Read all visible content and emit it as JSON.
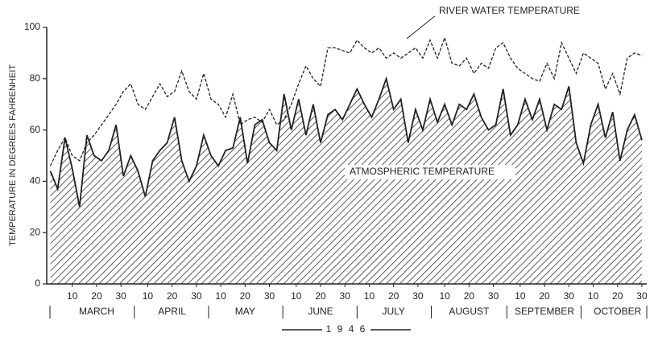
{
  "chart_data": {
    "type": "area-line",
    "ylabel": "TEMPERATURE IN DEGREES FAHRENHEIT",
    "xlabel": "1 9 4 6",
    "months": [
      "MARCH",
      "APRIL",
      "MAY",
      "JUNE",
      "JULY",
      "AUGUST",
      "SEPTEMBER",
      "OCTOBER"
    ],
    "xlim": [
      -1.5,
      245
    ],
    "xticks": [
      {
        "value": 9,
        "label": "10"
      },
      {
        "value": 19,
        "label": "20"
      },
      {
        "value": 29,
        "label": "30"
      },
      {
        "value": 40,
        "label": "10"
      },
      {
        "value": 50,
        "label": "20"
      },
      {
        "value": 60,
        "label": "30"
      },
      {
        "value": 70,
        "label": "10"
      },
      {
        "value": 80,
        "label": "20"
      },
      {
        "value": 90,
        "label": "30"
      },
      {
        "value": 101,
        "label": "10"
      },
      {
        "value": 111,
        "label": "20"
      },
      {
        "value": 121,
        "label": "30"
      },
      {
        "value": 131,
        "label": "10"
      },
      {
        "value": 141,
        "label": "20"
      },
      {
        "value": 151,
        "label": "30"
      },
      {
        "value": 162,
        "label": "10"
      },
      {
        "value": 172,
        "label": "20"
      },
      {
        "value": 182,
        "label": "30"
      },
      {
        "value": 193,
        "label": "10"
      },
      {
        "value": 203,
        "label": "20"
      },
      {
        "value": 213,
        "label": "30"
      },
      {
        "value": 223,
        "label": "10"
      },
      {
        "value": 233,
        "label": "20"
      },
      {
        "value": 243,
        "label": "30"
      }
    ],
    "ylim": [
      0,
      100
    ],
    "yticks": [
      0,
      20,
      40,
      60,
      80,
      100
    ],
    "x": [
      0,
      3,
      6,
      9,
      12,
      15,
      18,
      21,
      24,
      27,
      30,
      33,
      36,
      39,
      42,
      45,
      48,
      51,
      54,
      57,
      60,
      63,
      66,
      69,
      72,
      75,
      78,
      81,
      84,
      87,
      90,
      93,
      96,
      99,
      102,
      105,
      108,
      111,
      114,
      117,
      120,
      123,
      126,
      129,
      132,
      135,
      138,
      141,
      144,
      147,
      150,
      153,
      156,
      159,
      162,
      165,
      168,
      171,
      174,
      177,
      180,
      183,
      186,
      189,
      192,
      195,
      198,
      201,
      204,
      207,
      210,
      213,
      216,
      219,
      222,
      225,
      228,
      231,
      234,
      237,
      240,
      243
    ],
    "series": [
      {
        "name": "ATMOSPHERIC TEMPERATURE",
        "style": "hatched-area",
        "color": "#222222",
        "values": [
          44,
          37,
          57,
          45,
          30,
          58,
          50,
          48,
          52,
          62,
          42,
          50,
          44,
          34,
          48,
          52,
          55,
          65,
          48,
          40,
          46,
          58,
          50,
          46,
          52,
          53,
          65,
          47,
          62,
          64,
          55,
          52,
          74,
          60,
          72,
          58,
          70,
          55,
          66,
          68,
          64,
          70,
          76,
          70,
          65,
          72,
          80,
          68,
          72,
          55,
          68,
          60,
          72,
          63,
          70,
          62,
          70,
          68,
          74,
          65,
          60,
          62,
          76,
          58,
          62,
          72,
          64,
          72,
          60,
          70,
          68,
          77,
          55,
          47,
          62,
          70,
          57,
          67,
          48,
          60,
          66,
          56
        ]
      },
      {
        "name": "RIVER WATER TEMPERATURE",
        "style": "dashed-line",
        "color": "#222222",
        "values": [
          46,
          52,
          57,
          50,
          48,
          55,
          58,
          62,
          66,
          70,
          75,
          78,
          70,
          68,
          73,
          78,
          73,
          75,
          83,
          75,
          72,
          82,
          72,
          70,
          65,
          74,
          62,
          64,
          65,
          63,
          68,
          62,
          64,
          70,
          78,
          85,
          80,
          77,
          92,
          92,
          91,
          90,
          95,
          92,
          90,
          92,
          88,
          90,
          88,
          90,
          92,
          88,
          95,
          88,
          96,
          86,
          85,
          88,
          82,
          86,
          84,
          92,
          94,
          88,
          84,
          82,
          80,
          79,
          86,
          80,
          94,
          88,
          82,
          90,
          88,
          86,
          76,
          82,
          74,
          88,
          90,
          89
        ]
      }
    ]
  }
}
